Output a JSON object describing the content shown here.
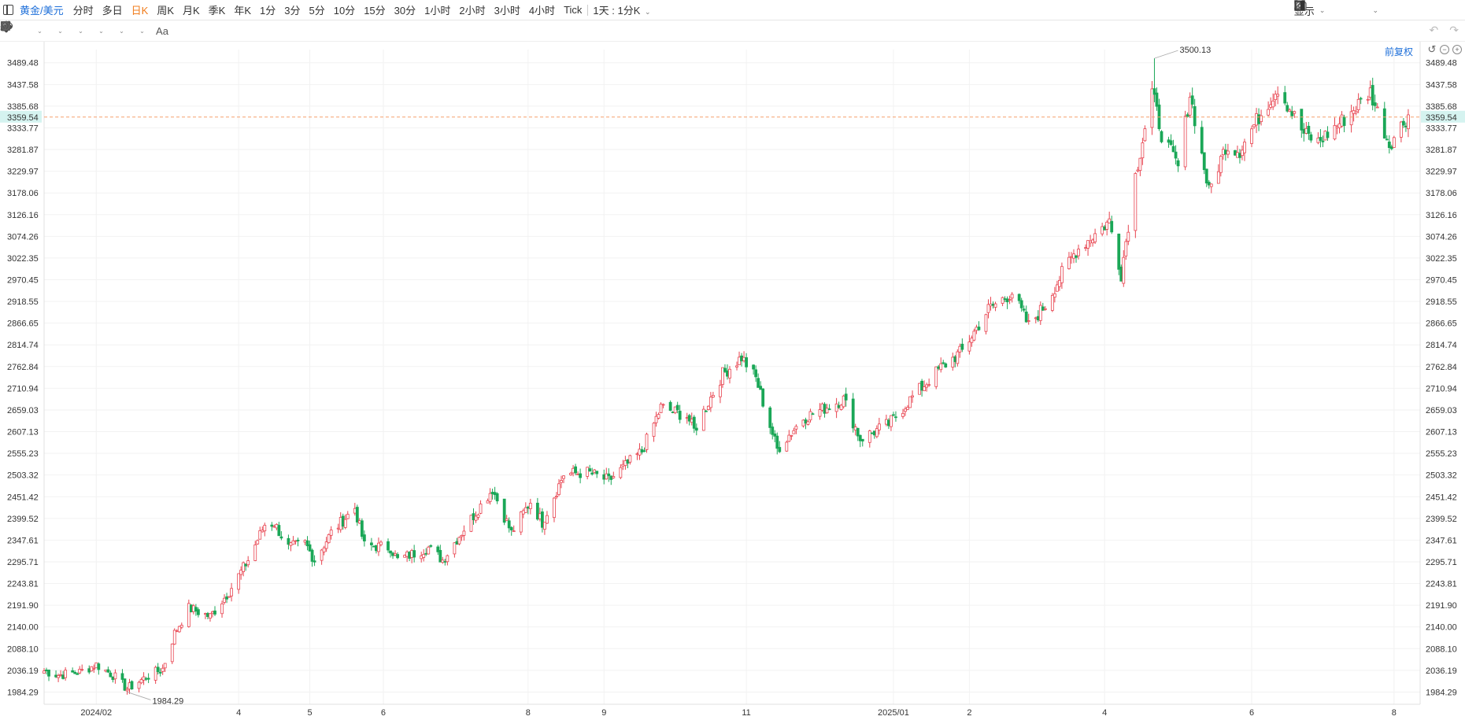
{
  "header": {
    "symbol": "黄金/美元",
    "periods": [
      "分时",
      "多日",
      "日K",
      "周K",
      "月K",
      "季K",
      "年K",
      "1分",
      "3分",
      "5分",
      "10分",
      "15分",
      "30分",
      "1小时",
      "2小时",
      "3小时",
      "4小时",
      "Tick"
    ],
    "active_period": "日K",
    "range_selector": "1天 : 1分K",
    "display_label": "显示"
  },
  "chart_header": {
    "adjust_label": "前复权"
  },
  "chart_data": {
    "type": "candlestick",
    "title": "",
    "xlabel": "",
    "ylabel": "",
    "ylim": [
      1955,
      3521
    ],
    "y_ticks": [
      "3489.48",
      "3437.58",
      "3385.68",
      "3333.77",
      "3281.87",
      "3229.97",
      "3178.06",
      "3126.16",
      "3074.26",
      "3022.35",
      "2970.45",
      "2918.55",
      "2866.65",
      "2814.74",
      "2762.84",
      "2710.94",
      "2659.03",
      "2607.13",
      "2555.23",
      "2503.32",
      "2451.42",
      "2399.52",
      "2347.61",
      "2295.71",
      "2243.81",
      "2191.90",
      "2140.00",
      "2088.10",
      "2036.19",
      "1984.29"
    ],
    "x_ticks": [
      {
        "label": "2024/02",
        "date": "2024-02-01"
      },
      {
        "label": "4",
        "date": "2024-04-01"
      },
      {
        "label": "5",
        "date": "2024-05-01"
      },
      {
        "label": "6",
        "date": "2024-06-01"
      },
      {
        "label": "8",
        "date": "2024-08-01"
      },
      {
        "label": "9",
        "date": "2024-09-02"
      },
      {
        "label": "11",
        "date": "2024-11-01"
      },
      {
        "label": "2025/01",
        "date": "2025-01-02"
      },
      {
        "label": "2",
        "date": "2025-02-03"
      },
      {
        "label": "4",
        "date": "2025-04-01"
      },
      {
        "label": "6",
        "date": "2025-06-02"
      },
      {
        "label": "8",
        "date": "2025-08-01"
      }
    ],
    "last_price": "3359.54",
    "max_label": "3500.13",
    "min_label": "1984.29",
    "price_path": [
      {
        "date": "2024-01-10",
        "price": 2035
      },
      {
        "date": "2024-01-16",
        "price": 2025
      },
      {
        "date": "2024-01-25",
        "price": 2032
      },
      {
        "date": "2024-02-01",
        "price": 2050
      },
      {
        "date": "2024-02-08",
        "price": 2025
      },
      {
        "date": "2024-02-14",
        "price": 1992
      },
      {
        "date": "2024-02-22",
        "price": 2020
      },
      {
        "date": "2024-02-29",
        "price": 2040
      },
      {
        "date": "2024-03-05",
        "price": 2125
      },
      {
        "date": "2024-03-11",
        "price": 2185
      },
      {
        "date": "2024-03-20",
        "price": 2165
      },
      {
        "date": "2024-03-28",
        "price": 2225
      },
      {
        "date": "2024-04-05",
        "price": 2300
      },
      {
        "date": "2024-04-12",
        "price": 2385
      },
      {
        "date": "2024-04-16",
        "price": 2388
      },
      {
        "date": "2024-04-22",
        "price": 2330
      },
      {
        "date": "2024-04-29",
        "price": 2340
      },
      {
        "date": "2024-05-03",
        "price": 2300
      },
      {
        "date": "2024-05-10",
        "price": 2365
      },
      {
        "date": "2024-05-20",
        "price": 2425
      },
      {
        "date": "2024-05-24",
        "price": 2335
      },
      {
        "date": "2024-06-04",
        "price": 2330
      },
      {
        "date": "2024-06-07",
        "price": 2300
      },
      {
        "date": "2024-06-20",
        "price": 2330
      },
      {
        "date": "2024-06-26",
        "price": 2300
      },
      {
        "date": "2024-07-05",
        "price": 2375
      },
      {
        "date": "2024-07-17",
        "price": 2470
      },
      {
        "date": "2024-07-25",
        "price": 2365
      },
      {
        "date": "2024-08-02",
        "price": 2440
      },
      {
        "date": "2024-08-07",
        "price": 2390
      },
      {
        "date": "2024-08-16",
        "price": 2505
      },
      {
        "date": "2024-08-26",
        "price": 2510
      },
      {
        "date": "2024-09-04",
        "price": 2490
      },
      {
        "date": "2024-09-18",
        "price": 2560
      },
      {
        "date": "2024-09-26",
        "price": 2665
      },
      {
        "date": "2024-10-07",
        "price": 2645
      },
      {
        "date": "2024-10-10",
        "price": 2610
      },
      {
        "date": "2024-10-22",
        "price": 2745
      },
      {
        "date": "2024-10-30",
        "price": 2785
      },
      {
        "date": "2024-11-05",
        "price": 2735
      },
      {
        "date": "2024-11-14",
        "price": 2565
      },
      {
        "date": "2024-11-25",
        "price": 2640
      },
      {
        "date": "2024-11-29",
        "price": 2650
      },
      {
        "date": "2024-12-12",
        "price": 2685
      },
      {
        "date": "2024-12-19",
        "price": 2590
      },
      {
        "date": "2024-12-31",
        "price": 2625
      },
      {
        "date": "2025-01-10",
        "price": 2690
      },
      {
        "date": "2025-01-22",
        "price": 2760
      },
      {
        "date": "2025-01-31",
        "price": 2800
      },
      {
        "date": "2025-02-11",
        "price": 2900
      },
      {
        "date": "2025-02-21",
        "price": 2940
      },
      {
        "date": "2025-02-28",
        "price": 2860
      },
      {
        "date": "2025-03-07",
        "price": 2910
      },
      {
        "date": "2025-03-14",
        "price": 2985
      },
      {
        "date": "2025-03-20",
        "price": 3040
      },
      {
        "date": "2025-03-28",
        "price": 3080
      },
      {
        "date": "2025-04-03",
        "price": 3110
      },
      {
        "date": "2025-04-08",
        "price": 2985
      },
      {
        "date": "2025-04-14",
        "price": 3220
      },
      {
        "date": "2025-04-21",
        "price": 3420
      },
      {
        "date": "2025-04-25",
        "price": 3320
      },
      {
        "date": "2025-05-02",
        "price": 3240
      },
      {
        "date": "2025-05-07",
        "price": 3415
      },
      {
        "date": "2025-05-15",
        "price": 3180
      },
      {
        "date": "2025-05-22",
        "price": 3290
      },
      {
        "date": "2025-05-28",
        "price": 3280
      },
      {
        "date": "2025-06-05",
        "price": 3360
      },
      {
        "date": "2025-06-13",
        "price": 3430
      },
      {
        "date": "2025-06-24",
        "price": 3320
      },
      {
        "date": "2025-06-30",
        "price": 3300
      },
      {
        "date": "2025-07-11",
        "price": 3355
      },
      {
        "date": "2025-07-22",
        "price": 3420
      },
      {
        "date": "2025-07-30",
        "price": 3295
      },
      {
        "date": "2025-08-07",
        "price": 3365
      }
    ]
  },
  "colors": {
    "up": "#e8434f",
    "down": "#1aa757",
    "last_price_line": "#f5a06e",
    "last_price_bg": "#d5f3f0",
    "grid": "#f2f2f2"
  }
}
